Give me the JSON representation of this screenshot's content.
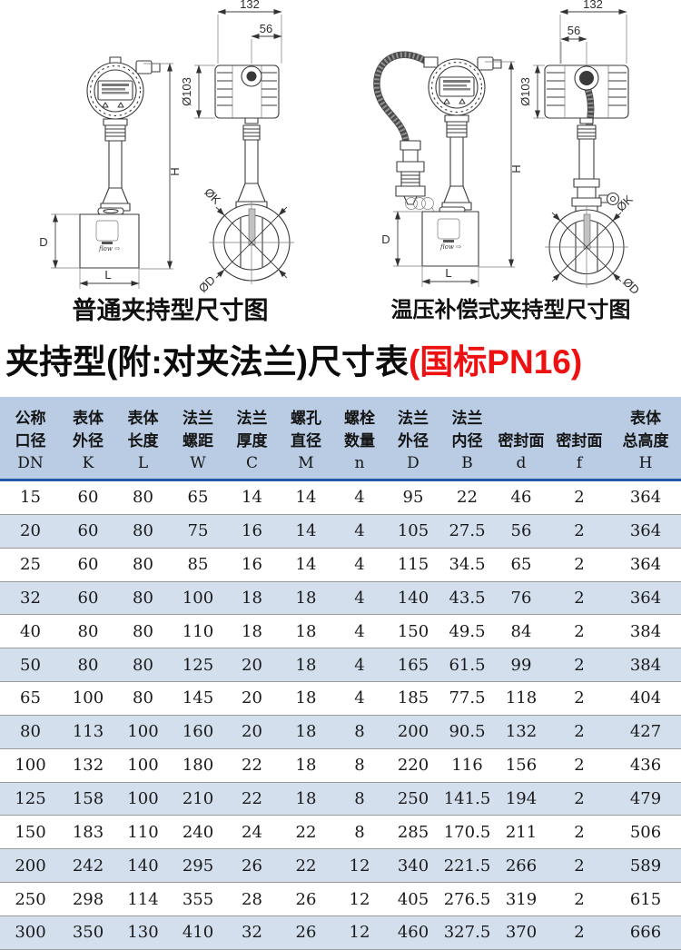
{
  "diagrams": {
    "left": {
      "caption": "普通夹持型尺寸图",
      "dims": {
        "width": "132",
        "head_width": "56",
        "head_dia": "Ø103",
        "height": "H",
        "body_height": "D",
        "body_length": "L",
        "clamp_dia": "ØK",
        "bore_dia": "ØD",
        "flow": "flow ⇨"
      }
    },
    "right": {
      "caption": "温压补偿式夹持型尺寸图",
      "dims": {
        "width": "132",
        "head_width": "56",
        "head_dia": "Ø103",
        "height": "H",
        "body_height": "D",
        "body_length": "L",
        "clamp_dia": "ØK",
        "bore_dia": "ØD",
        "flow": "flow ⇨"
      }
    }
  },
  "title": {
    "black": "夹持型(附:对夹法兰)尺寸表",
    "red": "(国标PN16)"
  },
  "table": {
    "columns": [
      {
        "name_lines": [
          "公称",
          "口径"
        ],
        "symbol": "DN"
      },
      {
        "name_lines": [
          "表体",
          "外径"
        ],
        "symbol": "K"
      },
      {
        "name_lines": [
          "表体",
          "长度"
        ],
        "symbol": "L"
      },
      {
        "name_lines": [
          "法兰",
          "螺距"
        ],
        "symbol": "W"
      },
      {
        "name_lines": [
          "法兰",
          "厚度"
        ],
        "symbol": "C"
      },
      {
        "name_lines": [
          "螺孔",
          "直径"
        ],
        "symbol": "M"
      },
      {
        "name_lines": [
          "螺栓",
          "数量"
        ],
        "symbol": "n"
      },
      {
        "name_lines": [
          "法兰",
          "外径"
        ],
        "symbol": "D"
      },
      {
        "name_lines": [
          "法兰",
          "内径"
        ],
        "symbol": "B"
      },
      {
        "name_lines": [
          "密封面"
        ],
        "symbol": "d"
      },
      {
        "name_lines": [
          "密封面"
        ],
        "symbol": "f"
      },
      {
        "name_lines": [
          "表体",
          "总高度"
        ],
        "symbol": "H"
      }
    ],
    "rows": [
      [
        "15",
        "60",
        "80",
        "65",
        "14",
        "14",
        "4",
        "95",
        "22",
        "46",
        "2",
        "364"
      ],
      [
        "20",
        "60",
        "80",
        "75",
        "16",
        "14",
        "4",
        "105",
        "27.5",
        "56",
        "2",
        "364"
      ],
      [
        "25",
        "60",
        "80",
        "85",
        "16",
        "14",
        "4",
        "115",
        "34.5",
        "65",
        "2",
        "364"
      ],
      [
        "32",
        "60",
        "80",
        "100",
        "18",
        "18",
        "4",
        "140",
        "43.5",
        "76",
        "2",
        "364"
      ],
      [
        "40",
        "80",
        "80",
        "110",
        "18",
        "18",
        "4",
        "150",
        "49.5",
        "84",
        "2",
        "384"
      ],
      [
        "50",
        "80",
        "80",
        "125",
        "20",
        "18",
        "4",
        "165",
        "61.5",
        "99",
        "2",
        "384"
      ],
      [
        "65",
        "100",
        "80",
        "145",
        "20",
        "18",
        "4",
        "185",
        "77.5",
        "118",
        "2",
        "404"
      ],
      [
        "80",
        "113",
        "100",
        "160",
        "20",
        "18",
        "8",
        "200",
        "90.5",
        "132",
        "2",
        "427"
      ],
      [
        "100",
        "132",
        "100",
        "180",
        "22",
        "18",
        "8",
        "220",
        "116",
        "156",
        "2",
        "436"
      ],
      [
        "125",
        "158",
        "100",
        "210",
        "22",
        "18",
        "8",
        "250",
        "141.5",
        "194",
        "2",
        "479"
      ],
      [
        "150",
        "183",
        "110",
        "240",
        "24",
        "22",
        "8",
        "285",
        "170.5",
        "211",
        "2",
        "506"
      ],
      [
        "200",
        "242",
        "140",
        "295",
        "26",
        "22",
        "12",
        "340",
        "221.5",
        "266",
        "2",
        "589"
      ],
      [
        "250",
        "298",
        "114",
        "355",
        "28",
        "26",
        "12",
        "405",
        "276.5",
        "319",
        "2",
        "615"
      ],
      [
        "300",
        "350",
        "130",
        "410",
        "32",
        "26",
        "12",
        "460",
        "327.5",
        "370",
        "2",
        "666"
      ]
    ]
  },
  "colors": {
    "header_bg": "#b9cce3",
    "stripe_bg": "#d4dfee",
    "header_divider": "#2059a8",
    "row_line": "#9b9b9b",
    "title_red": "#ee1111"
  }
}
